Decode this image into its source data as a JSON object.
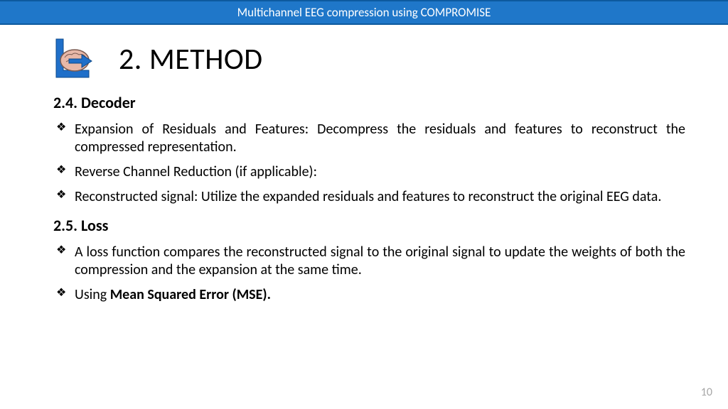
{
  "header": {
    "title": "Multichannel EEG compression using COMPROMISE",
    "bg_color": "#1f77c9",
    "text_color": "#ffffff"
  },
  "main_title": "2. METHOD",
  "icon": {
    "name": "brain-arrow-icon",
    "frame_color": "#1f6fc9",
    "arrow_color": "#1f6fc9",
    "brain_fill": "#e8b8a8",
    "brain_stroke": "#5a4a44"
  },
  "sections": [
    {
      "heading": "2.4. Decoder",
      "bullets": [
        "Expansion of Residuals and Features: Decompress the residuals and features to reconstruct the compressed representation.",
        "Reverse Channel Reduction (if applicable):",
        "Reconstructed signal: Utilize the expanded residuals and features to reconstruct the original EEG data."
      ]
    },
    {
      "heading": "2.5. Loss",
      "bullets": [
        "A loss function compares the reconstructed signal to the original signal to update the weights of both the compression and the expansion at the same time.",
        "Using <b>Mean Squared Error (MSE).</b>"
      ]
    }
  ],
  "page_number": "10"
}
